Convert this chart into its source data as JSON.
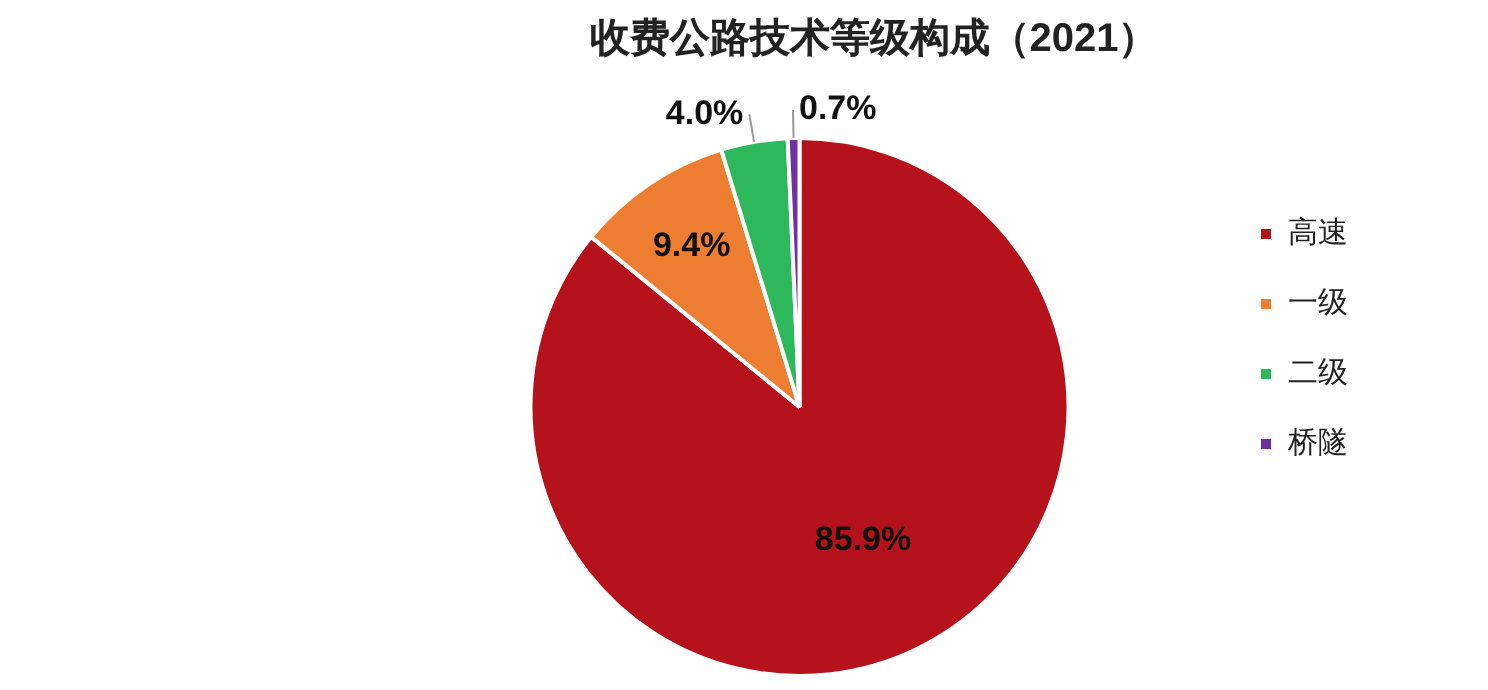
{
  "chart_data": {
    "type": "pie",
    "title": "收费公路技术等级构成（2021）",
    "categories": [
      "高速",
      "一级",
      "二级",
      "桥隧"
    ],
    "values": [
      85.9,
      9.4,
      4.0,
      0.7
    ],
    "value_labels": [
      "85.9%",
      "9.4%",
      "4.0%",
      "0.7%"
    ],
    "colors": [
      "#b5121b",
      "#ed7d31",
      "#2eb85c",
      "#7030a0"
    ],
    "legend": "right"
  }
}
